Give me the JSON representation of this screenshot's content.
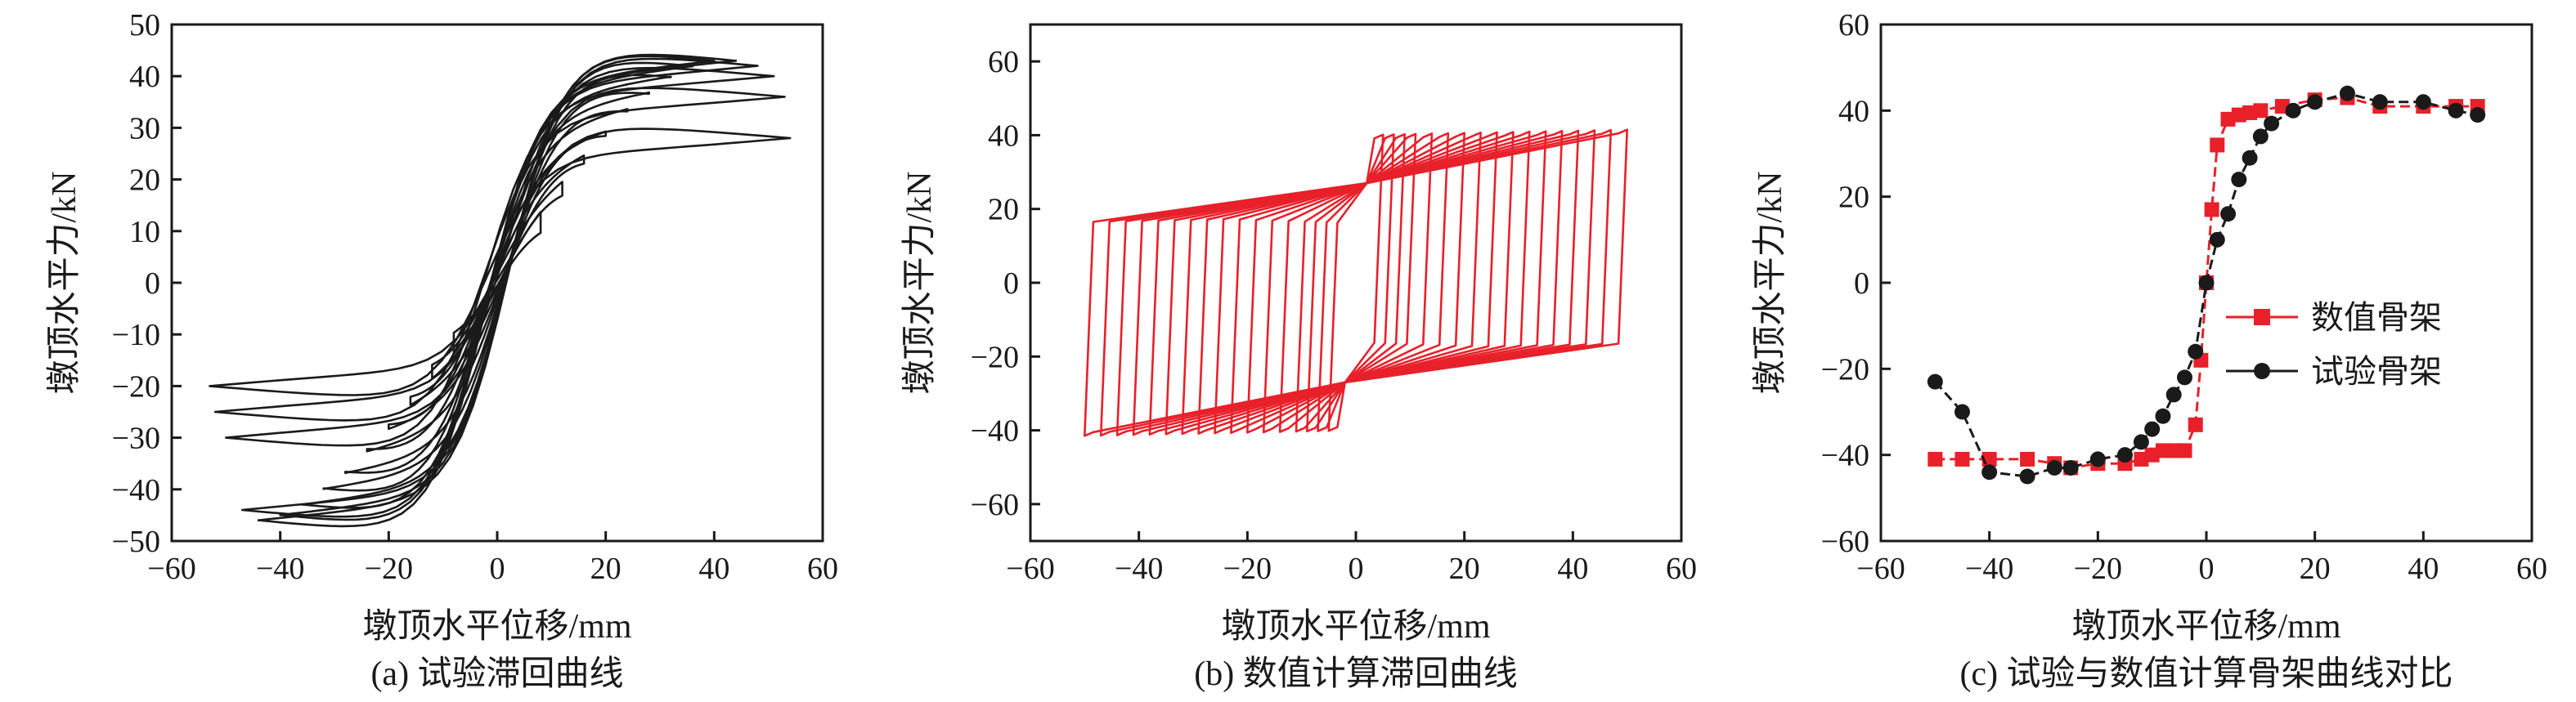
{
  "panels": [
    {
      "caption": "(a) 试验滞回曲线",
      "xlabel": "墩顶水平位移/mm",
      "ylabel": "墩顶水平力/kN",
      "xlim": [
        -60,
        60
      ],
      "ylim": [
        -50,
        50
      ],
      "xticks": [
        "−60",
        "−40",
        "−20",
        "0",
        "20",
        "40",
        "60"
      ],
      "yticks": [
        "−50",
        "−40",
        "−30",
        "−20",
        "−10",
        "0",
        "10",
        "20",
        "30",
        "40",
        "50"
      ],
      "color": "#1a1a1a"
    },
    {
      "caption": "(b) 数值计算滞回曲线",
      "xlabel": "墩顶水平位移/mm",
      "ylabel": "墩顶水平力/kN",
      "xlim": [
        -60,
        60
      ],
      "ylim": [
        -70,
        70
      ],
      "xticks": [
        "−60",
        "−40",
        "−20",
        "0",
        "20",
        "40",
        "60"
      ],
      "yticks": [
        "−60",
        "−40",
        "−20",
        "0",
        "20",
        "40",
        "60"
      ],
      "color": "#e8202a"
    },
    {
      "caption": "(c) 试验与数值计算骨架曲线对比",
      "xlabel": "墩顶水平位移/mm",
      "ylabel": "墩顶水平力/kN",
      "xlim": [
        -60,
        60
      ],
      "ylim": [
        -60,
        60
      ],
      "xticks": [
        "−60",
        "−40",
        "−20",
        "0",
        "20",
        "40",
        "60"
      ],
      "yticks": [
        "−60",
        "−40",
        "−20",
        "0",
        "20",
        "40",
        "60"
      ],
      "legend": [
        "数值骨架",
        "试验骨架"
      ],
      "legend_position": "right"
    }
  ],
  "chart_data": [
    {
      "type": "line",
      "xlabel": "墩顶水平位移/mm",
      "ylabel": "墩顶水平力/kN",
      "xlim": [
        -60,
        60
      ],
      "ylim": [
        -50,
        50
      ],
      "loop_peaks": [
        {
          "pos": [
            8,
            18
          ],
          "neg": [
            -8,
            -18
          ]
        },
        {
          "pos": [
            12,
            22
          ],
          "neg": [
            -12,
            -21
          ]
        },
        {
          "pos": [
            16,
            26
          ],
          "neg": [
            -16,
            -25
          ]
        },
        {
          "pos": [
            20,
            30
          ],
          "neg": [
            -20,
            -29
          ]
        },
        {
          "pos": [
            24,
            34
          ],
          "neg": [
            -24,
            -33
          ]
        },
        {
          "pos": [
            28,
            37
          ],
          "neg": [
            -28,
            -37
          ]
        },
        {
          "pos": [
            32,
            40
          ],
          "neg": [
            -32,
            -40
          ]
        },
        {
          "pos": [
            36,
            42
          ],
          "neg": [
            -36,
            -43
          ]
        },
        {
          "pos": [
            40,
            43
          ],
          "neg": [
            -40,
            -45
          ]
        },
        {
          "pos": [
            44,
            43
          ],
          "neg": [
            -44,
            -46
          ]
        },
        {
          "pos": [
            48,
            42
          ],
          "neg": [
            -47,
            -44
          ]
        },
        {
          "pos": [
            51,
            40
          ],
          "neg": [
            -50,
            -30
          ]
        },
        {
          "pos": [
            53,
            36
          ],
          "neg": [
            -52,
            -25
          ]
        },
        {
          "pos": [
            54,
            28
          ],
          "neg": [
            -53,
            -20
          ]
        }
      ]
    },
    {
      "type": "line",
      "xlabel": "墩顶水平位移/mm",
      "ylabel": "墩顶水平力/kN",
      "xlim": [
        -60,
        60
      ],
      "ylim": [
        -70,
        70
      ],
      "loop_amplitudes": [
        5,
        7,
        9,
        11,
        14,
        17,
        20,
        23,
        26,
        29,
        32,
        35,
        38,
        41,
        44,
        47,
        50
      ],
      "yield_force": 40,
      "peak_force": 43
    },
    {
      "type": "line",
      "xlabel": "墩顶水平位移/mm",
      "ylabel": "墩顶水平力/kN",
      "xlim": [
        -60,
        60
      ],
      "ylim": [
        -60,
        60
      ],
      "series": [
        {
          "name": "数值骨架",
          "color": "#e8202a",
          "marker": "square",
          "x": [
            -50,
            -45,
            -40,
            -33,
            -28,
            -25,
            -20,
            -15,
            -12,
            -10,
            -8,
            -6,
            -4,
            -2,
            -1,
            0,
            1,
            2,
            4,
            6,
            8,
            10,
            14,
            20,
            26,
            32,
            40,
            46,
            50
          ],
          "y": [
            -41,
            -41,
            -41,
            -41,
            -42,
            -43,
            -42,
            -42,
            -41,
            -40,
            -39,
            -39,
            -39,
            -33,
            -18,
            0,
            17,
            32,
            38,
            39,
            39.5,
            40,
            41,
            42.5,
            43,
            41,
            41,
            41,
            41
          ]
        },
        {
          "name": "试验骨架",
          "color": "#1a1a1a",
          "marker": "circle",
          "x": [
            -50,
            -45,
            -40,
            -33,
            -28,
            -25,
            -20,
            -15,
            -12,
            -10,
            -8,
            -6,
            -4,
            -2,
            0,
            2,
            4,
            6,
            8,
            10,
            12,
            16,
            20,
            26,
            32,
            40,
            46,
            50
          ],
          "y": [
            -23,
            -30,
            -44,
            -45,
            -43,
            -43,
            -41,
            -40,
            -37,
            -34,
            -31,
            -26,
            -22,
            -16,
            0,
            10,
            16,
            24,
            29,
            34,
            37,
            40,
            42,
            44,
            42,
            42,
            40,
            39
          ]
        }
      ]
    }
  ]
}
